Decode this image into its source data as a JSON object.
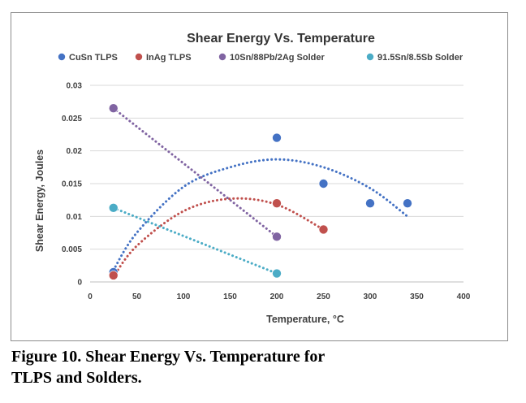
{
  "figure": {
    "caption_line1": "Figure 10.  Shear Energy Vs. Temperature for",
    "caption_line2": "TLPS and Solders."
  },
  "chart_data": {
    "type": "scatter",
    "title": "Shear Energy Vs. Temperature",
    "xlabel": "Temperature, °C",
    "ylabel": "Shear Energy, Joules",
    "xlim": [
      0,
      400
    ],
    "ylim": [
      0,
      0.03
    ],
    "x_ticks": [
      0,
      50,
      100,
      150,
      200,
      250,
      300,
      350,
      400
    ],
    "y_ticks": [
      0,
      0.005,
      0.01,
      0.015,
      0.02,
      0.025,
      0.03
    ],
    "x_tick_labels": [
      "0",
      "50",
      "100",
      "150",
      "200",
      "250",
      "300",
      "350",
      "400"
    ],
    "y_tick_labels": [
      "0",
      "0.005",
      "0.01",
      "0.015",
      "0.02",
      "0.025",
      "0.03"
    ],
    "grid": "horizontal",
    "legend_position": "top",
    "series": [
      {
        "name": "CuSn TLPS",
        "color": "#4472c4",
        "trendline": "polynomial",
        "points": [
          [
            25,
            0.0015
          ],
          [
            200,
            0.022
          ],
          [
            250,
            0.015
          ],
          [
            300,
            0.012
          ],
          [
            340,
            0.012
          ]
        ],
        "trend": [
          [
            25,
            0.0018
          ],
          [
            50,
            0.0075
          ],
          [
            100,
            0.0145
          ],
          [
            150,
            0.0175
          ],
          [
            200,
            0.0187
          ],
          [
            250,
            0.0175
          ],
          [
            300,
            0.0143
          ],
          [
            340,
            0.01
          ]
        ]
      },
      {
        "name": "InAg TLPS",
        "color": "#c0504d",
        "trendline": "polynomial",
        "points": [
          [
            25,
            0.001
          ],
          [
            200,
            0.012
          ],
          [
            250,
            0.008
          ]
        ],
        "trend": [
          [
            25,
            0.0008
          ],
          [
            50,
            0.0055
          ],
          [
            100,
            0.0108
          ],
          [
            150,
            0.0127
          ],
          [
            200,
            0.0118
          ],
          [
            250,
            0.008
          ]
        ]
      },
      {
        "name": "10Sn/88Pb/2Ag Solder",
        "color": "#8064a2",
        "trendline": "linear",
        "points": [
          [
            25,
            0.0265
          ],
          [
            200,
            0.0069
          ]
        ],
        "trend": [
          [
            25,
            0.0265
          ],
          [
            200,
            0.0069
          ]
        ]
      },
      {
        "name": "91.5Sn/8.5Sb Solder",
        "color": "#4bacc6",
        "trendline": "linear",
        "points": [
          [
            25,
            0.0113
          ],
          [
            200,
            0.0013
          ]
        ],
        "trend": [
          [
            25,
            0.0113
          ],
          [
            200,
            0.0013
          ]
        ]
      }
    ]
  }
}
